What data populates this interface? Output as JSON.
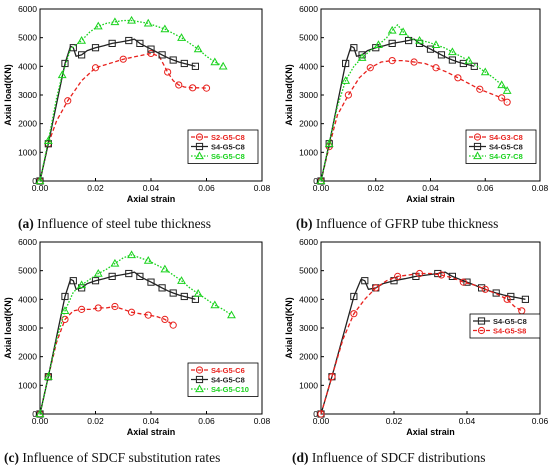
{
  "panels": [
    {
      "caption_letter": "(a)",
      "caption_text": "Influence of steel tube thickness",
      "chart_data": {
        "type": "line",
        "xlabel": "Axial strain",
        "ylabel": "Axial load(KN)",
        "xlim": [
          0,
          0.08
        ],
        "ylim": [
          0,
          6000
        ],
        "xticks": [
          "0.00",
          "0.02",
          "0.04",
          "0.06",
          "0.08"
        ],
        "yticks": [
          "0",
          "1000",
          "2000",
          "3000",
          "4000",
          "5000",
          "6000"
        ],
        "legend_position": "lower-right",
        "series": [
          {
            "name": "S2-G5-C8",
            "color": "#e8211d",
            "dash": "dashed",
            "marker": "circle",
            "x": [
              0,
              0.003,
              0.006,
              0.01,
              0.015,
              0.02,
              0.025,
              0.03,
              0.035,
              0.04,
              0.043,
              0.046,
              0.048,
              0.05,
              0.052,
              0.055,
              0.058,
              0.06
            ],
            "y": [
              0,
              1300,
              2100,
              2800,
              3500,
              3950,
              4100,
              4250,
              4350,
              4450,
              4350,
              3800,
              3500,
              3350,
              3280,
              3250,
              3250,
              3240
            ]
          },
          {
            "name": "S4-G5-C8",
            "color": "#222222",
            "dash": "solid",
            "marker": "square",
            "x": [
              0,
              0.003,
              0.006,
              0.009,
              0.011,
              0.012,
              0.013,
              0.015,
              0.017,
              0.02,
              0.023,
              0.026,
              0.029,
              0.032,
              0.034,
              0.036,
              0.038,
              0.04,
              0.042,
              0.044,
              0.046,
              0.048,
              0.05,
              0.052,
              0.054,
              0.056
            ],
            "y": [
              0,
              1300,
              2700,
              4100,
              4700,
              4650,
              4350,
              4400,
              4550,
              4650,
              4720,
              4800,
              4850,
              4900,
              4950,
              4800,
              4700,
              4600,
              4500,
              4400,
              4300,
              4220,
              4150,
              4100,
              4050,
              4000
            ]
          },
          {
            "name": "S6-G5-C8",
            "color": "#19d21d",
            "dash": "dotted",
            "marker": "triangle",
            "x": [
              0,
              0.003,
              0.006,
              0.008,
              0.011,
              0.015,
              0.018,
              0.021,
              0.024,
              0.027,
              0.03,
              0.033,
              0.036,
              0.039,
              0.042,
              0.045,
              0.048,
              0.051,
              0.054,
              0.057,
              0.06,
              0.063,
              0.066
            ],
            "y": [
              0,
              1400,
              2900,
              3700,
              4600,
              4900,
              5200,
              5400,
              5500,
              5550,
              5600,
              5600,
              5550,
              5500,
              5400,
              5300,
              5150,
              5000,
              4800,
              4600,
              4350,
              4150,
              4000
            ]
          }
        ]
      }
    },
    {
      "caption_letter": "(b)",
      "caption_text": "Influence of GFRP tube thickness",
      "chart_data": {
        "type": "line",
        "xlabel": "Axial strain",
        "ylabel": "Axial load(KN)",
        "xlim": [
          0,
          0.08
        ],
        "ylim": [
          0,
          6000
        ],
        "xticks": [
          "0.00",
          "0.02",
          "0.04",
          "0.06",
          "0.08"
        ],
        "yticks": [
          "0",
          "1000",
          "2000",
          "3000",
          "4000",
          "5000",
          "6000"
        ],
        "legend_position": "lower-right",
        "series": [
          {
            "name": "S4-G3-C8",
            "color": "#e8211d",
            "dash": "dashed",
            "marker": "circle",
            "x": [
              0,
              0.003,
              0.006,
              0.01,
              0.014,
              0.018,
              0.022,
              0.026,
              0.03,
              0.034,
              0.038,
              0.042,
              0.046,
              0.05,
              0.054,
              0.058,
              0.062,
              0.066,
              0.068
            ],
            "y": [
              0,
              1200,
              2300,
              3000,
              3600,
              3950,
              4150,
              4200,
              4200,
              4150,
              4100,
              3950,
              3800,
              3600,
              3400,
              3200,
              3050,
              2900,
              2750
            ]
          },
          {
            "name": "S4-G5-C8",
            "color": "#222222",
            "dash": "solid",
            "marker": "square",
            "x": [
              0,
              0.003,
              0.006,
              0.009,
              0.011,
              0.012,
              0.013,
              0.015,
              0.017,
              0.02,
              0.023,
              0.026,
              0.029,
              0.032,
              0.034,
              0.036,
              0.038,
              0.04,
              0.042,
              0.044,
              0.046,
              0.048,
              0.05,
              0.052,
              0.054,
              0.056
            ],
            "y": [
              0,
              1300,
              2700,
              4100,
              4700,
              4650,
              4350,
              4400,
              4550,
              4650,
              4720,
              4800,
              4850,
              4900,
              4950,
              4800,
              4700,
              4600,
              4500,
              4400,
              4300,
              4220,
              4150,
              4100,
              4050,
              4000
            ]
          },
          {
            "name": "S4-G7-C8",
            "color": "#19d21d",
            "dash": "dotted",
            "marker": "triangle",
            "x": [
              0,
              0.003,
              0.006,
              0.009,
              0.012,
              0.015,
              0.018,
              0.021,
              0.024,
              0.026,
              0.028,
              0.03,
              0.033,
              0.036,
              0.039,
              0.042,
              0.045,
              0.048,
              0.051,
              0.054,
              0.057,
              0.06,
              0.063,
              0.066,
              0.068
            ],
            "y": [
              0,
              1300,
              2600,
              3500,
              4000,
              4300,
              4550,
              4750,
              5000,
              5250,
              5450,
              5200,
              4950,
              4900,
              4850,
              4750,
              4650,
              4500,
              4350,
              4200,
              4000,
              3800,
              3600,
              3350,
              3150
            ]
          }
        ]
      }
    },
    {
      "caption_letter": "(c)",
      "caption_text": "Influence of SDCF substitution rates",
      "chart_data": {
        "type": "line",
        "xlabel": "Axial strain",
        "ylabel": "Axial load(KN)",
        "xlim": [
          0,
          0.08
        ],
        "ylim": [
          0,
          6000
        ],
        "xticks": [
          "0.00",
          "0.02",
          "0.04",
          "0.06",
          "0.08"
        ],
        "yticks": [
          "0",
          "1000",
          "2000",
          "3000",
          "4000",
          "5000",
          "6000"
        ],
        "legend_position": "lower-right",
        "series": [
          {
            "name": "S4-G5-C6",
            "color": "#e8211d",
            "dash": "dashed",
            "marker": "circle",
            "x": [
              0,
              0.003,
              0.006,
              0.009,
              0.012,
              0.015,
              0.018,
              0.021,
              0.024,
              0.027,
              0.03,
              0.033,
              0.036,
              0.039,
              0.042,
              0.045,
              0.048
            ],
            "y": [
              0,
              1300,
              2500,
              3300,
              3600,
              3650,
              3650,
              3700,
              3700,
              3750,
              3650,
              3550,
              3500,
              3450,
              3400,
              3300,
              3100
            ]
          },
          {
            "name": "S4-G5-C8",
            "color": "#222222",
            "dash": "solid",
            "marker": "square",
            "x": [
              0,
              0.003,
              0.006,
              0.009,
              0.011,
              0.012,
              0.013,
              0.015,
              0.017,
              0.02,
              0.023,
              0.026,
              0.029,
              0.032,
              0.034,
              0.036,
              0.038,
              0.04,
              0.042,
              0.044,
              0.046,
              0.048,
              0.05,
              0.052,
              0.054,
              0.056
            ],
            "y": [
              0,
              1300,
              2700,
              4100,
              4700,
              4650,
              4350,
              4400,
              4550,
              4650,
              4720,
              4800,
              4850,
              4900,
              4950,
              4800,
              4700,
              4600,
              4500,
              4400,
              4300,
              4220,
              4150,
              4100,
              4050,
              4000
            ]
          },
          {
            "name": "S4-G5-C10",
            "color": "#19d21d",
            "dash": "dotted",
            "marker": "triangle",
            "x": [
              0,
              0.003,
              0.006,
              0.009,
              0.012,
              0.015,
              0.018,
              0.021,
              0.024,
              0.027,
              0.03,
              0.033,
              0.036,
              0.039,
              0.042,
              0.045,
              0.048,
              0.051,
              0.054,
              0.057,
              0.06,
              0.063,
              0.066,
              0.069
            ],
            "y": [
              0,
              1300,
              2600,
              3600,
              4250,
              4500,
              4700,
              4900,
              5050,
              5250,
              5450,
              5550,
              5450,
              5350,
              5200,
              5050,
              4850,
              4650,
              4400,
              4200,
              4000,
              3800,
              3650,
              3450
            ]
          }
        ]
      }
    },
    {
      "caption_letter": "(d)",
      "caption_text": "Influence of SDCF distributions",
      "chart_data": {
        "type": "line",
        "xlabel": "Axial strain",
        "ylabel": "Axial load(KN)",
        "xlim": [
          0,
          0.06
        ],
        "ylim": [
          0,
          6000
        ],
        "xticks": [
          "0.00",
          "0.02",
          "0.04",
          "0.06"
        ],
        "yticks": [
          "0",
          "1000",
          "2000",
          "3000",
          "4000",
          "5000",
          "6000"
        ],
        "legend_position": "center-right",
        "series": [
          {
            "name": "S4-G5-C8",
            "color": "#222222",
            "dash": "solid",
            "marker": "square",
            "x": [
              0,
              0.003,
              0.006,
              0.009,
              0.011,
              0.012,
              0.013,
              0.015,
              0.017,
              0.02,
              0.023,
              0.026,
              0.029,
              0.032,
              0.034,
              0.036,
              0.038,
              0.04,
              0.042,
              0.044,
              0.046,
              0.048,
              0.05,
              0.052,
              0.054,
              0.056
            ],
            "y": [
              0,
              1300,
              2700,
              4100,
              4700,
              4650,
              4350,
              4400,
              4550,
              4650,
              4720,
              4800,
              4850,
              4900,
              4950,
              4800,
              4700,
              4600,
              4500,
              4400,
              4300,
              4220,
              4150,
              4100,
              4050,
              4000
            ]
          },
          {
            "name": "S4-G5-S8",
            "color": "#e8211d",
            "dash": "dashed",
            "marker": "circle",
            "x": [
              0,
              0.003,
              0.006,
              0.009,
              0.012,
              0.015,
              0.018,
              0.021,
              0.024,
              0.027,
              0.03,
              0.033,
              0.036,
              0.039,
              0.042,
              0.045,
              0.048,
              0.051,
              0.053,
              0.055
            ],
            "y": [
              0,
              1300,
              2600,
              3500,
              4000,
              4400,
              4650,
              4800,
              4850,
              4900,
              4900,
              4850,
              4750,
              4600,
              4500,
              4350,
              4200,
              4000,
              3750,
              3600
            ]
          }
        ]
      }
    }
  ]
}
